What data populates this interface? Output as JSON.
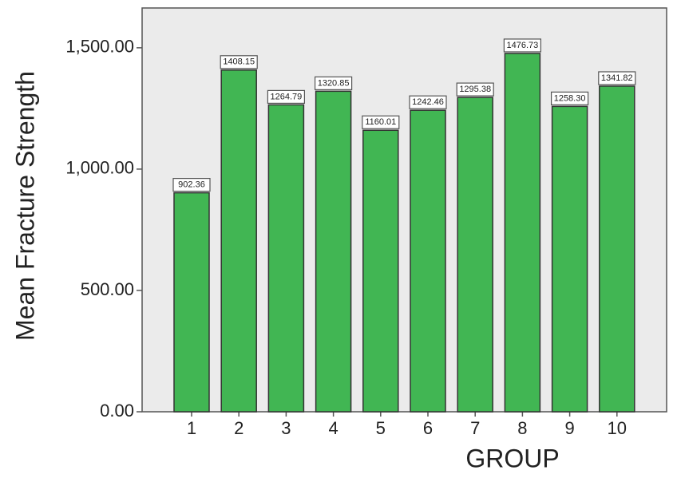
{
  "chart_data": {
    "type": "bar",
    "x_label": "GROUP",
    "y_label": "Mean Fracture Strength",
    "categories": [
      "1",
      "2",
      "3",
      "4",
      "5",
      "6",
      "7",
      "8",
      "9",
      "10"
    ],
    "values": [
      902.36,
      1408.15,
      1264.79,
      1320.85,
      1160.01,
      1242.46,
      1295.38,
      1476.73,
      1258.3,
      1341.82
    ],
    "value_labels": [
      "902.36",
      "1408.15",
      "1264.79",
      "1320.85",
      "1160.01",
      "1242.46",
      "1295.38",
      "1476.73",
      "1258.30",
      "1341.82"
    ],
    "color": "#41b653",
    "ylim": [
      0,
      1664
    ],
    "yticks": [
      {
        "value": 0,
        "label": "0.00"
      },
      {
        "value": 500,
        "label": "500.00"
      },
      {
        "value": 1000,
        "label": "1,000.00"
      },
      {
        "value": 1500,
        "label": "1,500.00"
      }
    ]
  }
}
